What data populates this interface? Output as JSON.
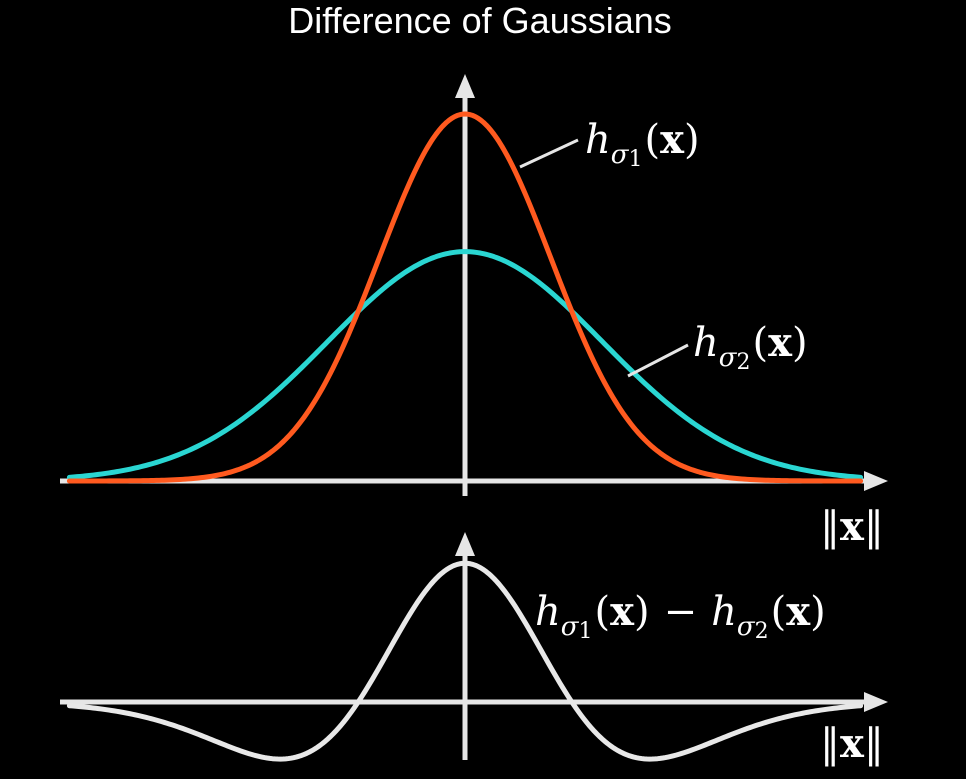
{
  "title": "Difference of Gaussians",
  "colors": {
    "background": "#000000",
    "axes": "#e6e6e6",
    "h_sigma1": "#ff5a1f",
    "h_sigma2": "#2ad6d2",
    "difference": "#e8e8e8",
    "text": "#ffffff"
  },
  "curves": {
    "h_sigma1": {
      "sigma": 1.0,
      "peak": 1.0
    },
    "h_sigma2": {
      "sigma": 1.6,
      "peak": 0.625
    },
    "x_range": [
      -4.6,
      4.6
    ]
  },
  "labels": {
    "h1": {
      "base": "h",
      "sub_greek": "σ",
      "sub_num": "1",
      "open": "(",
      "arg": "x",
      "close": ")"
    },
    "h2": {
      "base": "h",
      "sub_greek": "σ",
      "sub_num": "2",
      "open": "(",
      "arg": "x",
      "close": ")"
    },
    "minus": "−",
    "norm_top": {
      "bars_left": "‖",
      "arg": "x",
      "bars_right": "‖"
    },
    "norm_bottom": {
      "bars_left": "‖",
      "arg": "x",
      "bars_right": "‖"
    }
  }
}
